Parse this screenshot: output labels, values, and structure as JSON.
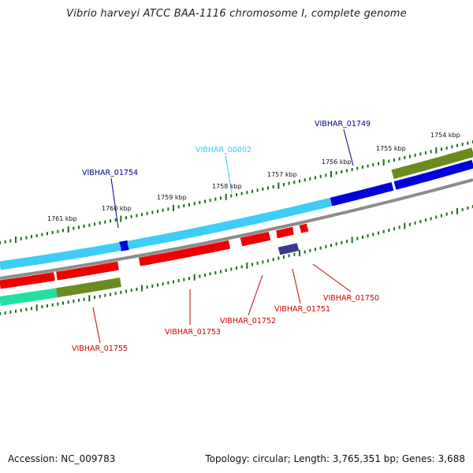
{
  "title": "Vibrio harveyi ATCC BAA-1116 chromosome I, complete genome",
  "footer": {
    "accession": "Accession: NC_009783",
    "summary": "Topology: circular; Length: 3,765,351 bp; Genes: 3,688"
  },
  "colors": {
    "backbone": "#8c8c8c",
    "tick": "#1a6e1a",
    "gene_cyan": "#3ecdf5",
    "gene_blue": "#0000dd",
    "gene_red": "#ee0000",
    "gene_olive": "#6b8a1f",
    "gene_teal": "#22e0a0",
    "gene_slate": "#3a3a8c",
    "label_blue": "#00008b",
    "label_cyan": "#33ccee",
    "label_red": "#cc0000"
  },
  "scale_labels": [
    "1761 kbp",
    "1760 kbp",
    "1759 kbp",
    "1758 kbp",
    "1757 kbp",
    "1756 kbp",
    "1755 kbp",
    "1754 kbp"
  ],
  "gene_labels": [
    {
      "text": "VIBHAR_01754",
      "color": "label_blue"
    },
    {
      "text": "VIBHAR_00002",
      "color": "label_cyan"
    },
    {
      "text": "VIBHAR_01749",
      "color": "label_blue"
    },
    {
      "text": "VIBHAR_01755",
      "color": "label_red"
    },
    {
      "text": "VIBHAR_01753",
      "color": "label_red"
    },
    {
      "text": "VIBHAR_01752",
      "color": "label_red"
    },
    {
      "text": "VIBHAR_01751",
      "color": "label_red"
    },
    {
      "text": "VIBHAR_01750",
      "color": "label_red"
    }
  ]
}
